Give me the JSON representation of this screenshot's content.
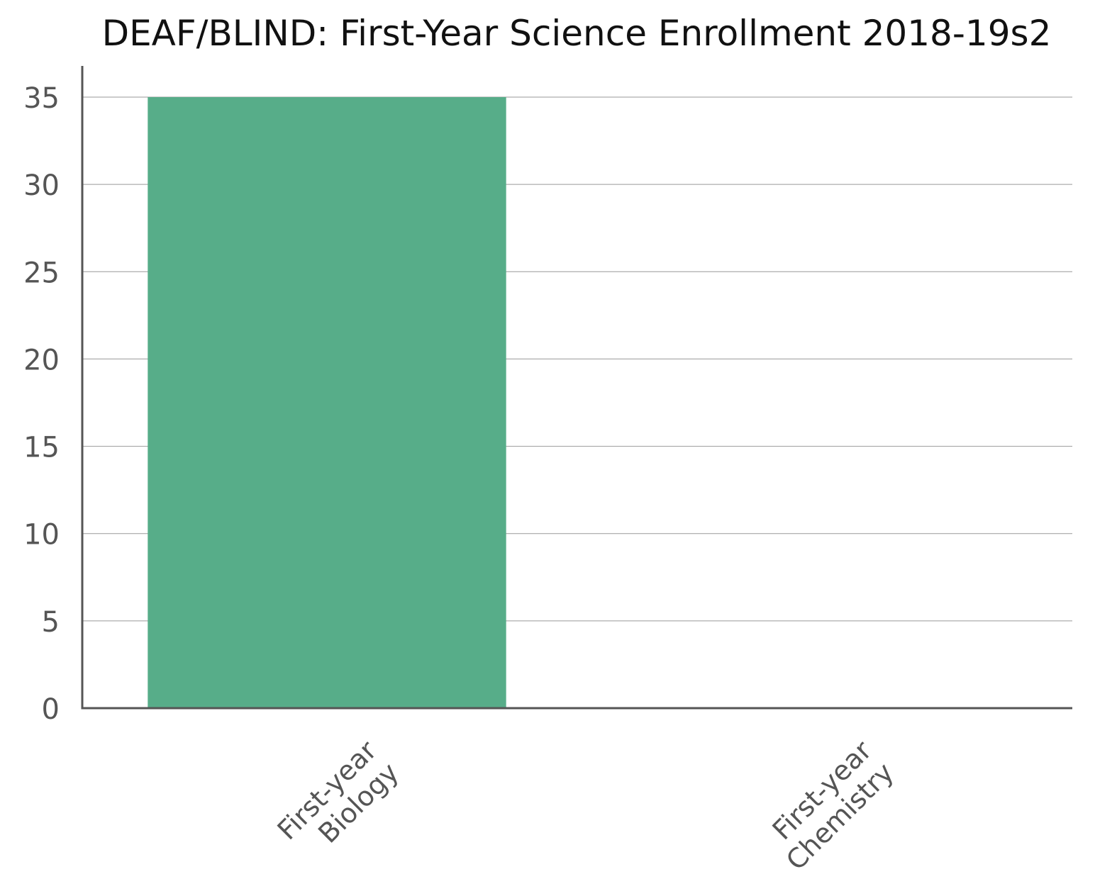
{
  "chart_data": {
    "type": "bar",
    "title": "DEAF/BLIND: First-Year Science Enrollment 2018-19s2",
    "xlabel": "",
    "ylabel": "",
    "categories": [
      [
        "First-year",
        "Biology"
      ],
      [
        "First-year",
        "Chemistry"
      ]
    ],
    "values": [
      35,
      0
    ],
    "ylim": [
      0,
      35
    ],
    "yticks": [
      0,
      5,
      10,
      15,
      20,
      25,
      30,
      35
    ],
    "grid": true,
    "legend": "none",
    "colors": {
      "bar": "#57ad89",
      "axis": "#555555",
      "grid": "#999999",
      "tick_text": "#555555",
      "title_text": "#111111"
    }
  }
}
